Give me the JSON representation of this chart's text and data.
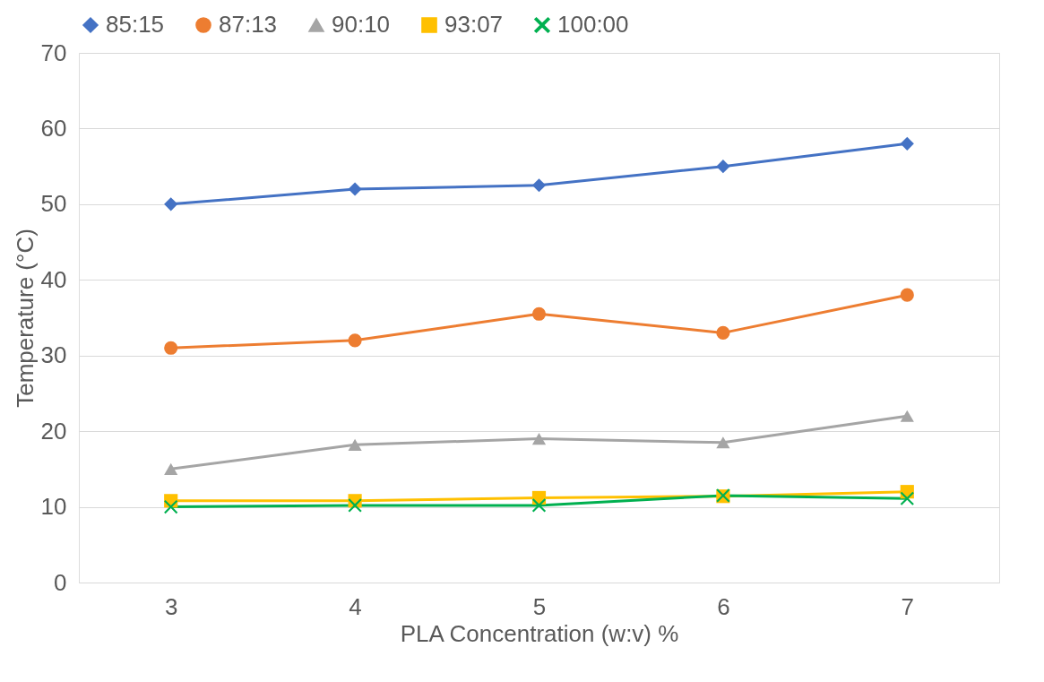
{
  "chart_data": {
    "type": "line",
    "xlabel": "PLA Concentration (w:v) %",
    "ylabel": "Temperature (°C)",
    "categories": [
      "3",
      "4",
      "5",
      "6",
      "7"
    ],
    "series": [
      {
        "name": "85:15",
        "color": "#4472c4",
        "marker": "diamond",
        "values": [
          50,
          52,
          52.5,
          55,
          58
        ]
      },
      {
        "name": "87:13",
        "color": "#ed7d31",
        "marker": "circle",
        "values": [
          31,
          32,
          35.5,
          33,
          38
        ]
      },
      {
        "name": "90:10",
        "color": "#a5a5a5",
        "marker": "triangle",
        "values": [
          15,
          18.2,
          19,
          18.5,
          22
        ]
      },
      {
        "name": "93:07",
        "color": "#ffc000",
        "marker": "square",
        "values": [
          10.8,
          10.8,
          11.2,
          11.4,
          12
        ]
      },
      {
        "name": "100:00",
        "color": "#00b050",
        "marker": "cross",
        "values": [
          10,
          10.2,
          10.2,
          11.5,
          11.1
        ]
      }
    ],
    "ylim": [
      0,
      70
    ],
    "yticks": [
      0,
      10,
      20,
      30,
      40,
      50,
      60,
      70
    ],
    "grid": "y",
    "legend": "top",
    "line_style": "solid"
  }
}
